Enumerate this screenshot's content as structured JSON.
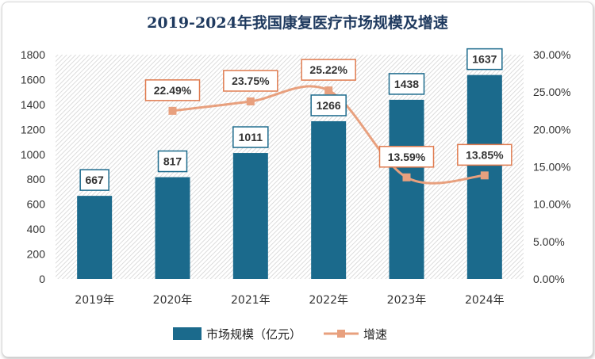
{
  "chart_data": {
    "type": "bar",
    "title": "2019-2024年我国康复医疗市场规模及增速",
    "categories": [
      "2019年",
      "2020年",
      "2021年",
      "2022年",
      "2023年",
      "2024年"
    ],
    "series": [
      {
        "name": "市场规模（亿元）",
        "type": "bar",
        "axis": "left",
        "values": [
          667,
          817,
          1011,
          1266,
          1438,
          1637
        ],
        "labels": [
          "667",
          "817",
          "1011",
          "1266",
          "1438",
          "1637"
        ],
        "color": "#1b6a8c"
      },
      {
        "name": "增速",
        "type": "line",
        "axis": "right",
        "values": [
          null,
          22.49,
          23.75,
          25.22,
          13.59,
          13.85
        ],
        "labels": [
          null,
          "22.49%",
          "23.75%",
          "25.22%",
          "13.59%",
          "13.85%"
        ],
        "color": "#e8a07e"
      }
    ],
    "ylim": [
      0,
      1800
    ],
    "yticks": [
      "0",
      "200",
      "400",
      "600",
      "800",
      "1000",
      "1200",
      "1400",
      "1600",
      "1800"
    ],
    "y2lim": [
      0,
      30
    ],
    "y2ticks": [
      "0.00%",
      "5.00%",
      "10.00%",
      "15.00%",
      "20.00%",
      "25.00%",
      "30.00%"
    ],
    "legend_position": "bottom",
    "grid": false,
    "colors": {
      "plot_hatch": "#cccccc",
      "title": "#1f3a5f",
      "label_border_bar": "#1b6a8c",
      "label_border_line": "#e07b4f"
    }
  }
}
